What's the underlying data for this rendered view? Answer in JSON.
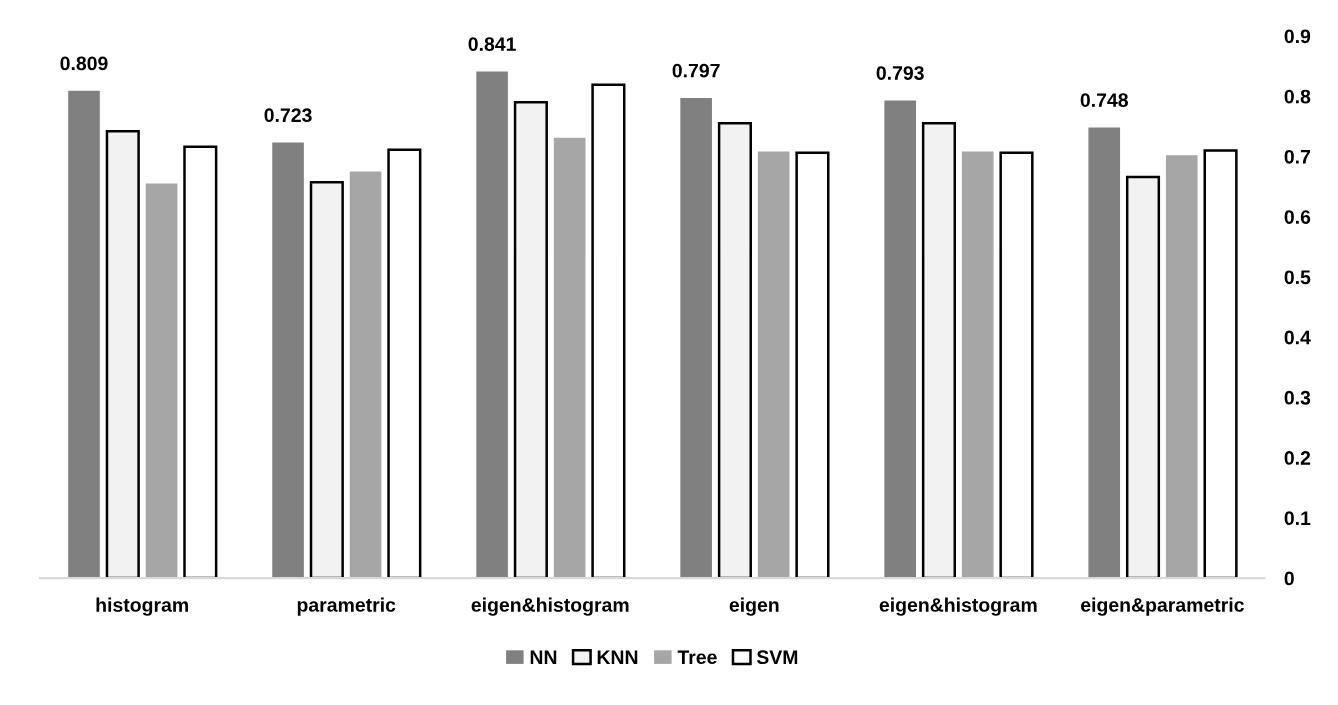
{
  "chart_data": {
    "type": "bar",
    "categories": [
      "histogram",
      "parametric",
      "eigen&histogram",
      "eigen",
      "eigen&histogram",
      "eigen&parametric"
    ],
    "series": [
      {
        "name": "NN",
        "color": "#808080",
        "values": [
          0.809,
          0.723,
          0.841,
          0.797,
          0.793,
          0.748
        ],
        "value_labels": [
          "0.809",
          "0.723",
          "0.841",
          "0.797",
          "0.793",
          "0.748"
        ]
      },
      {
        "name": "KNN",
        "color": "#f2f2f2",
        "values": [
          0.742,
          0.657,
          0.79,
          0.755,
          0.755,
          0.666
        ]
      },
      {
        "name": "Tree",
        "color": "#a6a6a6",
        "values": [
          0.655,
          0.675,
          0.731,
          0.708,
          0.708,
          0.702
        ]
      },
      {
        "name": "SVM",
        "color": "#ffffff",
        "values": [
          0.716,
          0.711,
          0.819,
          0.706,
          0.706,
          0.71
        ]
      }
    ],
    "ylim": [
      0,
      0.9
    ],
    "yticks": [
      0,
      0.1,
      0.2,
      0.3,
      0.4,
      0.5,
      0.6,
      0.7,
      0.8,
      0.9
    ],
    "grid": false,
    "legend": "bottom"
  }
}
